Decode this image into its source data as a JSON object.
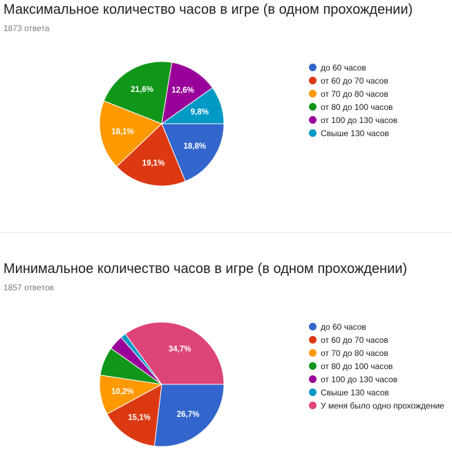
{
  "colors": {
    "blue": "#3366cc",
    "red": "#dc3912",
    "orange": "#ff9900",
    "green": "#109618",
    "purple": "#990099",
    "teal": "#0099c6",
    "pink": "#dd4477"
  },
  "chart_data": [
    {
      "type": "pie",
      "title": "Максимальное количество часов в игре (в одном прохождении)",
      "subtitle": "1873 ответа",
      "legend": "right",
      "slices": [
        {
          "label": "до 60 часов",
          "value": 18.8,
          "display": "18,8%",
          "color": "#3366cc"
        },
        {
          "label": "от 60 до 70 часов",
          "value": 19.1,
          "display": "19,1%",
          "color": "#dc3912"
        },
        {
          "label": "от 70 до 80 часов",
          "value": 18.1,
          "display": "18,1%",
          "color": "#ff9900"
        },
        {
          "label": "от 80 до 100 часов",
          "value": 21.6,
          "display": "21,6%",
          "color": "#109618"
        },
        {
          "label": "от 100 до 130 часов",
          "value": 12.6,
          "display": "12,6%",
          "color": "#990099"
        },
        {
          "label": "Свыше 130 часов",
          "value": 9.8,
          "display": "9,8%",
          "color": "#0099c6"
        }
      ]
    },
    {
      "type": "pie",
      "title": "Минимальное количество часов в игре (в одном прохождении)",
      "subtitle": "1857 ответов",
      "legend": "right",
      "slices": [
        {
          "label": "до 60 часов",
          "value": 26.7,
          "display": "26,7%",
          "color": "#3366cc"
        },
        {
          "label": "от 60 до 70 часов",
          "value": 15.1,
          "display": "15,1%",
          "color": "#dc3912"
        },
        {
          "label": "от 70 до 80 часов",
          "value": 10.2,
          "display": "10,2%",
          "color": "#ff9900"
        },
        {
          "label": "от 80 до 100 часов",
          "value": 7.4,
          "display": "",
          "color": "#109618"
        },
        {
          "label": "от 100 до 130 часов",
          "value": 3.8,
          "display": "",
          "color": "#990099"
        },
        {
          "label": "Свыше 130 часов",
          "value": 1.4,
          "display": "",
          "color": "#0099c6"
        },
        {
          "label": "У меня было одно прохождение",
          "value": 34.7,
          "display": "34,7%",
          "color": "#dd4477"
        }
      ]
    }
  ]
}
